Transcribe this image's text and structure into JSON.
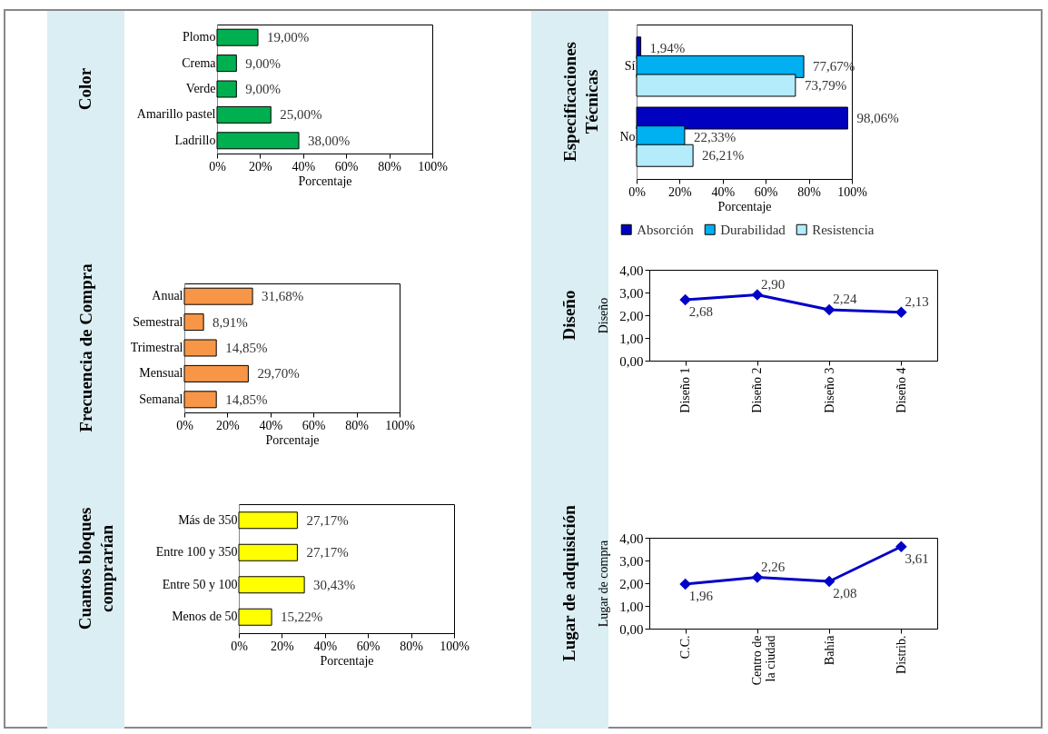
{
  "chart_data": [
    {
      "type": "bar",
      "title": "Color",
      "orientation": "horizontal",
      "categories": [
        "Plomo",
        "Crema",
        "Verde",
        "Amarillo pastel",
        "Ladrillo"
      ],
      "values": [
        19,
        9,
        9,
        25,
        38
      ],
      "value_labels": [
        "19,00%",
        "9,00%",
        "9,00%",
        "25,00%",
        "38,00%"
      ],
      "color": "#00b050",
      "xlabel": "Porcentaje",
      "xlim": [
        0,
        100
      ],
      "xticks": [
        {
          "value": 0,
          "label": "0%"
        },
        {
          "value": 20,
          "label": "20%"
        },
        {
          "value": 40,
          "label": "40%"
        },
        {
          "value": 60,
          "label": "60%"
        },
        {
          "value": 80,
          "label": "80%"
        },
        {
          "value": 100,
          "label": "100%"
        }
      ]
    },
    {
      "type": "bar",
      "title": "Especificaciones Técnicas",
      "orientation": "horizontal",
      "categories": [
        "Sí",
        "No"
      ],
      "series": [
        {
          "name": "Absorción",
          "color": "#0000c0",
          "values": [
            1.94,
            98.06
          ],
          "value_labels": [
            "1,94%",
            "98,06%"
          ]
        },
        {
          "name": "Durabilidad",
          "color": "#00b0f0",
          "values": [
            77.67,
            22.33
          ],
          "value_labels": [
            "77,67%",
            "22,33%"
          ]
        },
        {
          "name": "Resistencia",
          "color": "#b4ecfc",
          "values": [
            73.79,
            26.21
          ],
          "value_labels": [
            "73,79%",
            "26,21%"
          ]
        }
      ],
      "legend": "bottom left",
      "xlabel": "Porcentaje",
      "xlim": [
        0,
        100
      ],
      "xticks": [
        {
          "value": 0,
          "label": "0%"
        },
        {
          "value": 20,
          "label": "20%"
        },
        {
          "value": 40,
          "label": "40%"
        },
        {
          "value": 60,
          "label": "60%"
        },
        {
          "value": 80,
          "label": "80%"
        },
        {
          "value": 100,
          "label": "100%"
        }
      ]
    },
    {
      "type": "bar",
      "title": "Frecuencia de Compra",
      "orientation": "horizontal",
      "categories": [
        "Anual",
        "Semestral",
        "Trimestral",
        "Mensual",
        "Semanal"
      ],
      "values": [
        31.68,
        8.91,
        14.85,
        29.7,
        14.85
      ],
      "value_labels": [
        "31,68%",
        "8,91%",
        "14,85%",
        "29,70%",
        "14,85%"
      ],
      "color": "#f79646",
      "xlabel": "Porcentaje",
      "xlim": [
        0,
        100
      ],
      "xticks": [
        {
          "value": 0,
          "label": "0%"
        },
        {
          "value": 20,
          "label": "20%"
        },
        {
          "value": 40,
          "label": "40%"
        },
        {
          "value": 60,
          "label": "60%"
        },
        {
          "value": 80,
          "label": "80%"
        },
        {
          "value": 100,
          "label": "100%"
        }
      ]
    },
    {
      "type": "line",
      "title": "Diseño",
      "categories": [
        "Diseño 1",
        "Diseño 2",
        "Diseño 3",
        "Diseño 4"
      ],
      "values": [
        2.68,
        2.9,
        2.24,
        2.13
      ],
      "value_labels": [
        "2,68",
        "2,90",
        "2,24",
        "2,13"
      ],
      "color": "#0000c8",
      "marker": "diamond",
      "ylabel": "Diseño",
      "ylim": [
        0,
        4
      ],
      "yticks": [
        {
          "value": 0,
          "label": "0,00"
        },
        {
          "value": 1,
          "label": "1,00"
        },
        {
          "value": 2,
          "label": "2,00"
        },
        {
          "value": 3,
          "label": "3,00"
        },
        {
          "value": 4,
          "label": "4,00"
        }
      ]
    },
    {
      "type": "bar",
      "title": "Cuantos bloques comprarían",
      "orientation": "horizontal",
      "categories": [
        "Más de 350",
        "Entre 100 y 350",
        "Entre 50 y 100",
        "Menos de 50"
      ],
      "values": [
        27.17,
        27.17,
        30.43,
        15.22
      ],
      "value_labels": [
        "27,17%",
        "27,17%",
        "30,43%",
        "15,22%"
      ],
      "color": "#ffff00",
      "xlabel": "Porcentaje",
      "xlim": [
        0,
        100
      ],
      "xticks": [
        {
          "value": 0,
          "label": "0%"
        },
        {
          "value": 20,
          "label": "20%"
        },
        {
          "value": 40,
          "label": "40%"
        },
        {
          "value": 60,
          "label": "60%"
        },
        {
          "value": 80,
          "label": "80%"
        },
        {
          "value": 100,
          "label": "100%"
        }
      ]
    },
    {
      "type": "line",
      "title": "Lugar de adquisición",
      "categories": [
        "C.C.",
        "Centro de la ciudad",
        "Bahía",
        "Distrib."
      ],
      "values": [
        1.96,
        2.26,
        2.08,
        3.61
      ],
      "value_labels": [
        "1,96",
        "2,26",
        "2,08",
        "3,61"
      ],
      "color": "#0000c8",
      "marker": "diamond",
      "ylabel": "Lugar de compra",
      "ylim": [
        0,
        4
      ],
      "yticks": [
        {
          "value": 0,
          "label": "0,00"
        },
        {
          "value": 1,
          "label": "1,00"
        },
        {
          "value": 2,
          "label": "2,00"
        },
        {
          "value": 3,
          "label": "3,00"
        },
        {
          "value": 4,
          "label": "4,00"
        }
      ]
    }
  ]
}
